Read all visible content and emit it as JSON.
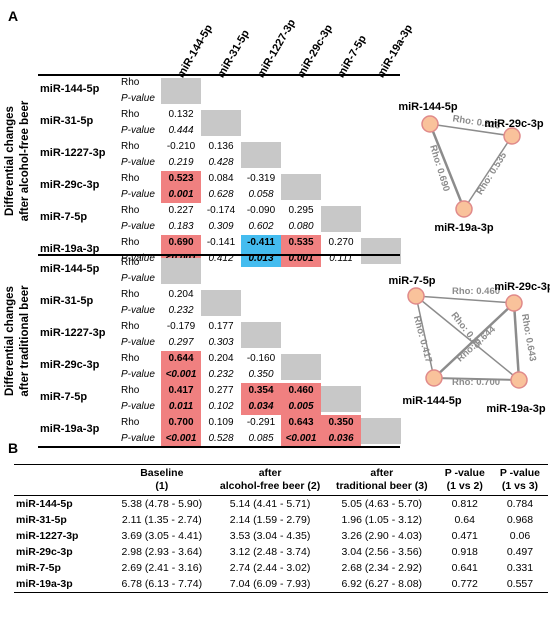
{
  "panel_a": {
    "letter": "A",
    "columns": [
      "miR-144-5p",
      "miR-31-5p",
      "miR-1227-3p",
      "miR-29c-3p",
      "miR-7-5p",
      "miR-19a-3p"
    ],
    "rho_label": "Rho",
    "p_label": "P-value",
    "groups": [
      {
        "title_line1": "Differential changes",
        "title_line2": "after alcohol-free beer",
        "rows": [
          {
            "name": "miR-144-5p",
            "rho": [],
            "p": [],
            "highlight": []
          },
          {
            "name": "miR-31-5p",
            "rho": [
              "0.132"
            ],
            "p": [
              "0.444"
            ],
            "highlight": [
              ""
            ]
          },
          {
            "name": "miR-1227-3p",
            "rho": [
              "-0.210",
              "0.136"
            ],
            "p": [
              "0.219",
              "0.428"
            ],
            "highlight": [
              "",
              ""
            ]
          },
          {
            "name": "miR-29c-3p",
            "rho": [
              "0.523",
              "0.084",
              "-0.319"
            ],
            "p": [
              "0.001",
              "0.628",
              "0.058"
            ],
            "highlight": [
              "red",
              "",
              ""
            ]
          },
          {
            "name": "miR-7-5p",
            "rho": [
              "0.227",
              "-0.174",
              "-0.090",
              "0.295"
            ],
            "p": [
              "0.183",
              "0.309",
              "0.602",
              "0.080"
            ],
            "highlight": [
              "",
              "",
              "",
              ""
            ]
          },
          {
            "name": "miR-19a-3p",
            "rho": [
              "0.690",
              "-0.141",
              "-0.411",
              "0.535",
              "0.270"
            ],
            "p": [
              "<0.001",
              "0.412",
              "0.013",
              "0.001",
              "0.111"
            ],
            "highlight": [
              "red",
              "",
              "blue",
              "red",
              ""
            ]
          }
        ]
      },
      {
        "title_line1": "Differential changes",
        "title_line2": "after traditional beer",
        "rows": [
          {
            "name": "miR-144-5p",
            "rho": [],
            "p": [],
            "highlight": []
          },
          {
            "name": "miR-31-5p",
            "rho": [
              "0.204"
            ],
            "p": [
              "0.232"
            ],
            "highlight": [
              ""
            ]
          },
          {
            "name": "miR-1227-3p",
            "rho": [
              "-0.179",
              "0.177"
            ],
            "p": [
              "0.297",
              "0.303"
            ],
            "highlight": [
              "",
              ""
            ]
          },
          {
            "name": "miR-29c-3p",
            "rho": [
              "0.644",
              "0.204",
              "-0.160"
            ],
            "p": [
              "<0.001",
              "0.232",
              "0.350"
            ],
            "highlight": [
              "red",
              "",
              ""
            ]
          },
          {
            "name": "miR-7-5p",
            "rho": [
              "0.417",
              "0.277",
              "0.354",
              "0.460"
            ],
            "p": [
              "0.011",
              "0.102",
              "0.034",
              "0.005"
            ],
            "highlight": [
              "red",
              "",
              "red",
              "red"
            ]
          },
          {
            "name": "miR-19a-3p",
            "rho": [
              "0.700",
              "0.109",
              "-0.291",
              "0.643",
              "0.350"
            ],
            "p": [
              "<0.001",
              "0.528",
              "0.085",
              "<0.001",
              "0.036"
            ],
            "highlight": [
              "red",
              "",
              "",
              "red",
              "red"
            ]
          }
        ]
      }
    ],
    "network1": {
      "nodes": [
        "miR-144-5p",
        "miR-29c-3p",
        "miR-19a-3p"
      ],
      "edges": [
        {
          "from": "miR-144-5p",
          "to": "miR-29c-3p",
          "label": "Rho: 0.523"
        },
        {
          "from": "miR-144-5p",
          "to": "miR-19a-3p",
          "label": "Rho: 0.690"
        },
        {
          "from": "miR-29c-3p",
          "to": "miR-19a-3p",
          "label": "Rho: 0.535"
        }
      ]
    },
    "network2": {
      "nodes": [
        "miR-7-5p",
        "miR-29c-3p",
        "miR-144-5p",
        "miR-19a-3p"
      ],
      "edges": [
        {
          "from": "miR-7-5p",
          "to": "miR-29c-3p",
          "label": "Rho: 0.460"
        },
        {
          "from": "miR-7-5p",
          "to": "miR-144-5p",
          "label": "Rho: 0.417"
        },
        {
          "from": "miR-7-5p",
          "to": "miR-19a-3p",
          "label": "Rho: 0.35"
        },
        {
          "from": "miR-144-5p",
          "to": "miR-29c-3p",
          "label": "Rho: 0.644"
        },
        {
          "from": "miR-29c-3p",
          "to": "miR-19a-3p",
          "label": "Rho: 0.643"
        },
        {
          "from": "miR-144-5p",
          "to": "miR-19a-3p",
          "label": "Rho: 0.700"
        }
      ]
    }
  },
  "panel_b": {
    "letter": "B",
    "headers": [
      {
        "line1": "",
        "line2": ""
      },
      {
        "line1": "Baseline",
        "line2": "(1)"
      },
      {
        "line1": "after",
        "line2": "alcohol-free beer (2)"
      },
      {
        "line1": "after",
        "line2": "traditional beer (3)"
      },
      {
        "line1": "P -value",
        "line2": "(1 vs 2)"
      },
      {
        "line1": "P -value",
        "line2": "(1 vs 3)"
      }
    ],
    "rows": [
      {
        "name": "miR-144-5p",
        "baseline": "5.38 (4.78 - 5.90)",
        "af": "5.14 (4.41 - 5.71)",
        "trad": "5.05 (4.63 - 5.70)",
        "p12": "0.812",
        "p13": "0.784"
      },
      {
        "name": "miR-31-5p",
        "baseline": "2.11 (1.35 - 2.74)",
        "af": "2.14 (1.59 - 2.79)",
        "trad": "1.96 (1.05 - 3.12)",
        "p12": "0.64",
        "p13": "0.968"
      },
      {
        "name": "miR-1227-3p",
        "baseline": "3.69 (3.05 - 4.41)",
        "af": "3.53 (3.04 - 4.35)",
        "trad": "3.26 (2.90 - 4.03)",
        "p12": "0.471",
        "p13": "0.06"
      },
      {
        "name": "miR-29c-3p",
        "baseline": "2.98 (2.93 - 3.64)",
        "af": "3.12 (2.48 - 3.74)",
        "trad": "3.04 (2.56 - 3.56)",
        "p12": "0.918",
        "p13": "0.497"
      },
      {
        "name": "miR-7-5p",
        "baseline": "2.69 (2.41 - 3.16)",
        "af": "2.74 (2.44 - 3.02)",
        "trad": "2.68 (2.34 - 2.92)",
        "p12": "0.641",
        "p13": "0.331"
      },
      {
        "name": "miR-19a-3p",
        "baseline": "6.78 (6.13 - 7.74)",
        "af": "7.04 (6.09 - 7.93)",
        "trad": "6.92 (6.27 - 8.08)",
        "p12": "0.772",
        "p13": "0.557"
      }
    ]
  }
}
